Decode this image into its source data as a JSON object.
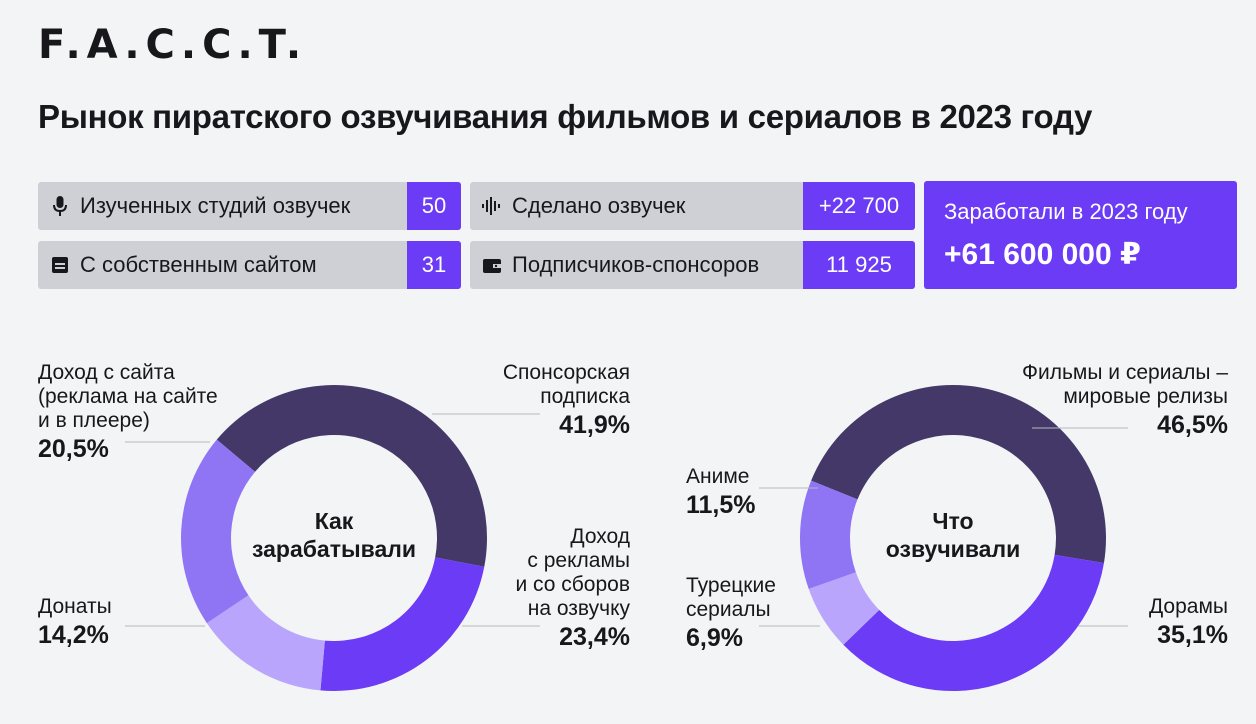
{
  "brand": "F.A.C.C.T.",
  "title": "Рынок пиратского озвучивания фильмов и сериалов в 2023 году",
  "stats": {
    "studios": {
      "label": "Изученных студий озвучек",
      "value": "50",
      "icon": "microphone-icon"
    },
    "own_site": {
      "label": "С собственным сайтом",
      "value": "31",
      "icon": "browser-window-icon"
    },
    "dubs": {
      "label": "Сделано озвучек",
      "value": "+22 700",
      "icon": "sound-wave-icon"
    },
    "subscribers": {
      "label": "Подписчиков-спонсоров",
      "value": "11 925",
      "icon": "wallet-icon"
    }
  },
  "earned": {
    "label": "Заработали в 2023 году",
    "value": "+61 600 000 ₽"
  },
  "colors": {
    "dark": "#443869",
    "accent": "#6c3bf5",
    "mid": "#8f74f4",
    "light": "#b9a5fb",
    "bg": "#f3f4f6"
  },
  "chart_data": [
    {
      "type": "pie",
      "title": "Как\nзарабатывали",
      "slices": [
        {
          "label": "Спонсорская\nподписка",
          "value": 41.9,
          "display": "41,9%",
          "color": "#443869"
        },
        {
          "label": "Доход\nс рекламы\nи со сборов\nна озвучку",
          "value": 23.4,
          "display": "23,4%",
          "color": "#6c3bf5"
        },
        {
          "label": "Донаты",
          "value": 14.2,
          "display": "14,2%",
          "color": "#b9a5fb"
        },
        {
          "label": "Доход с сайта\n(реклама на сайте\nи в плеере)",
          "value": 20.5,
          "display": "20,5%",
          "color": "#8f74f4"
        }
      ]
    },
    {
      "type": "pie",
      "title": "Что\nозвучивали",
      "slices": [
        {
          "label": "Фильмы и сериалы –\nмировые релизы",
          "value": 46.5,
          "display": "46,5%",
          "color": "#443869"
        },
        {
          "label": "Дорамы",
          "value": 35.1,
          "display": "35,1%",
          "color": "#6c3bf5"
        },
        {
          "label": "Турецкие\nсериалы",
          "value": 6.9,
          "display": "6,9%",
          "color": "#b9a5fb"
        },
        {
          "label": "Аниме",
          "value": 11.5,
          "display": "11,5%",
          "color": "#8f74f4"
        }
      ]
    }
  ]
}
